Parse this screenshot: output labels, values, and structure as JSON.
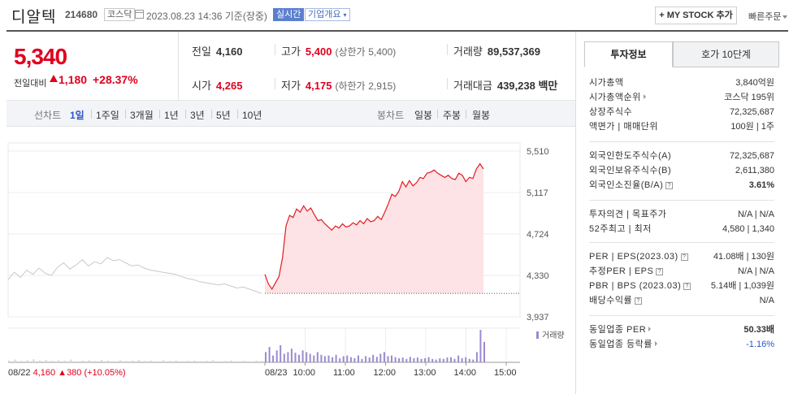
{
  "header": {
    "stock_name": "디알텍",
    "stock_code": "214680",
    "market": "코스닥",
    "datetime": "2023.08.23 14:36 기준(장중)",
    "live_badge": "실시간",
    "company_badge": "기업개요",
    "mystock_label": "MY STOCK 추가",
    "quick_order": "빠른주문"
  },
  "price": {
    "current": "5,340",
    "change_label": "전일대비",
    "change_value": "1,180",
    "change_rate": "+28.37%",
    "direction": "up",
    "up_color": "#e0001e"
  },
  "info": {
    "prev_close_label": "전일",
    "prev_close": "4,160",
    "high_label": "고가",
    "high": "5,400",
    "upper_limit_label": "(상한가",
    "upper_limit": "5,400)",
    "volume_label": "거래량",
    "volume": "89,537,369",
    "open_label": "시가",
    "open": "4,265",
    "low_label": "저가",
    "low": "4,175",
    "lower_limit_label": "(하한가",
    "lower_limit": "2,915)",
    "value_label": "거래대금",
    "value": "439,238 백만"
  },
  "period_bar": {
    "chart_label": "선차트",
    "periods": [
      "1일",
      "1주일",
      "3개월",
      "1년",
      "3년",
      "5년",
      "10년"
    ],
    "selected": "1일",
    "candle_label": "봉차트",
    "candles": [
      "일봉",
      "주봉",
      "월봉"
    ]
  },
  "chart_data": {
    "type": "line",
    "y_ticks": [
      "5,510",
      "5,117",
      "4,724",
      "4,330",
      "3,937"
    ],
    "ylim": [
      3937,
      5510
    ],
    "x_ticks": [
      "08/23",
      "10:00",
      "11:00",
      "12:00",
      "13:00",
      "14:00",
      "15:00"
    ],
    "prev_day_label": "08/22",
    "prev_day_close": "4,160",
    "prev_day_change": "380",
    "prev_day_rate": "(+10.05%)",
    "volume_legend": "거래량",
    "grid": true,
    "series": [
      {
        "session": "08/22",
        "color": "#c9c9c9",
        "values": [
          4290,
          4360,
          4310,
          4380,
          4340,
          4400,
          4350,
          4330,
          4410,
          4450,
          4390,
          4430,
          4480,
          4420,
          4460,
          4440,
          4500,
          4470,
          4480,
          4450,
          4420,
          4430,
          4400,
          4380,
          4370,
          4360,
          4350,
          4340,
          4320,
          4300,
          4290,
          4270,
          4260,
          4250,
          4240,
          4250,
          4230,
          4210,
          4220,
          4200,
          4180,
          4160
        ]
      },
      {
        "session": "08/23",
        "color": "#e31b23",
        "base": 4160,
        "values": [
          4340,
          4250,
          4200,
          4260,
          4320,
          4500,
          4800,
          4900,
          4880,
          4960,
          4930,
          4990,
          4940,
          4970,
          4910,
          4850,
          4860,
          4820,
          4790,
          4760,
          4800,
          4780,
          4820,
          4790,
          4800,
          4830,
          4810,
          4850,
          4820,
          4870,
          4840,
          4850,
          4890,
          4860,
          4930,
          5010,
          5100,
          5080,
          5130,
          5220,
          5170,
          5230,
          5180,
          5210,
          5260,
          5250,
          5300,
          5310,
          5330,
          5300,
          5280,
          5260,
          5280,
          5250,
          5240,
          5300,
          5280,
          5220,
          5260,
          5250,
          5340,
          5390,
          5340
        ]
      }
    ],
    "volume_values": [
      0.05,
      0.08,
      0.04,
      0.06,
      0.09,
      0.05,
      0.07,
      0.04,
      0.06,
      0.05,
      0.08,
      0.03,
      0.05,
      0.06,
      0.04,
      0.07,
      0.05,
      0.03,
      0.06,
      0.04,
      0.05,
      0.07,
      0.04,
      0.05,
      0.03,
      0.06,
      0.04,
      0.05,
      0.03,
      0.04,
      0.05,
      0.03,
      0.04,
      0.06,
      0.03,
      0.04,
      0.05,
      0.03,
      0.04,
      0.03,
      0.05,
      0.04,
      0.3,
      0.45,
      0.2,
      0.35,
      0.5,
      0.25,
      0.3,
      0.4,
      0.28,
      0.22,
      0.35,
      0.3,
      0.25,
      0.2,
      0.3,
      0.22,
      0.18,
      0.2,
      0.15,
      0.22,
      0.12,
      0.18,
      0.2,
      0.15,
      0.12,
      0.2,
      0.1,
      0.18,
      0.14,
      0.22,
      0.16,
      0.25,
      0.3,
      0.18,
      0.2,
      0.15,
      0.12,
      0.14,
      0.1,
      0.16,
      0.12,
      0.14,
      0.1,
      0.12,
      0.15,
      0.1,
      0.08,
      0.12,
      0.1,
      0.14,
      0.15,
      0.1,
      0.2,
      0.12,
      0.15,
      0.1,
      0.08,
      0.3,
      0.95,
      0.6
    ]
  },
  "right_panel": {
    "tabs": [
      "투자정보",
      "호가 10단계"
    ],
    "active_tab": "투자정보",
    "group1": [
      {
        "k": "시가총액",
        "v": "3,840억원"
      },
      {
        "k": "시가총액순위",
        "v": "코스닥 195위",
        "tri": true
      },
      {
        "k": "상장주식수",
        "v": "72,325,687"
      },
      {
        "k": "액면가 | 매매단위",
        "v": "100원 | 1주"
      }
    ],
    "group2": [
      {
        "k": "외국인한도주식수(A)",
        "v": "72,325,687"
      },
      {
        "k": "외국인보유주식수(B)",
        "v": "2,611,380"
      },
      {
        "k": "외국인소진율(B/A)",
        "v": "3.61%",
        "help": true,
        "bold": true
      }
    ],
    "group3": [
      {
        "k": "투자의견 | 목표주가",
        "v": "N/A | N/A"
      },
      {
        "k": "52주최고 | 최저",
        "v": "4,580 | 1,340"
      }
    ],
    "group4": [
      {
        "k": "PER | EPS(2023.03)",
        "v": "41.08배 | 130원",
        "help": true
      },
      {
        "k": "추정PER | EPS",
        "v": "N/A | N/A",
        "help": true
      },
      {
        "k": "PBR | BPS (2023.03)",
        "v": "5.14배 | 1,039원",
        "help": true
      },
      {
        "k": "배당수익률",
        "v": "N/A",
        "help": true
      }
    ],
    "group5": [
      {
        "k": "동일업종 PER",
        "v": "50.33배",
        "tri": true,
        "bold": true
      },
      {
        "k": "동일업종 등락률",
        "v": "-1.16%",
        "tri": true,
        "blue": true
      }
    ]
  }
}
